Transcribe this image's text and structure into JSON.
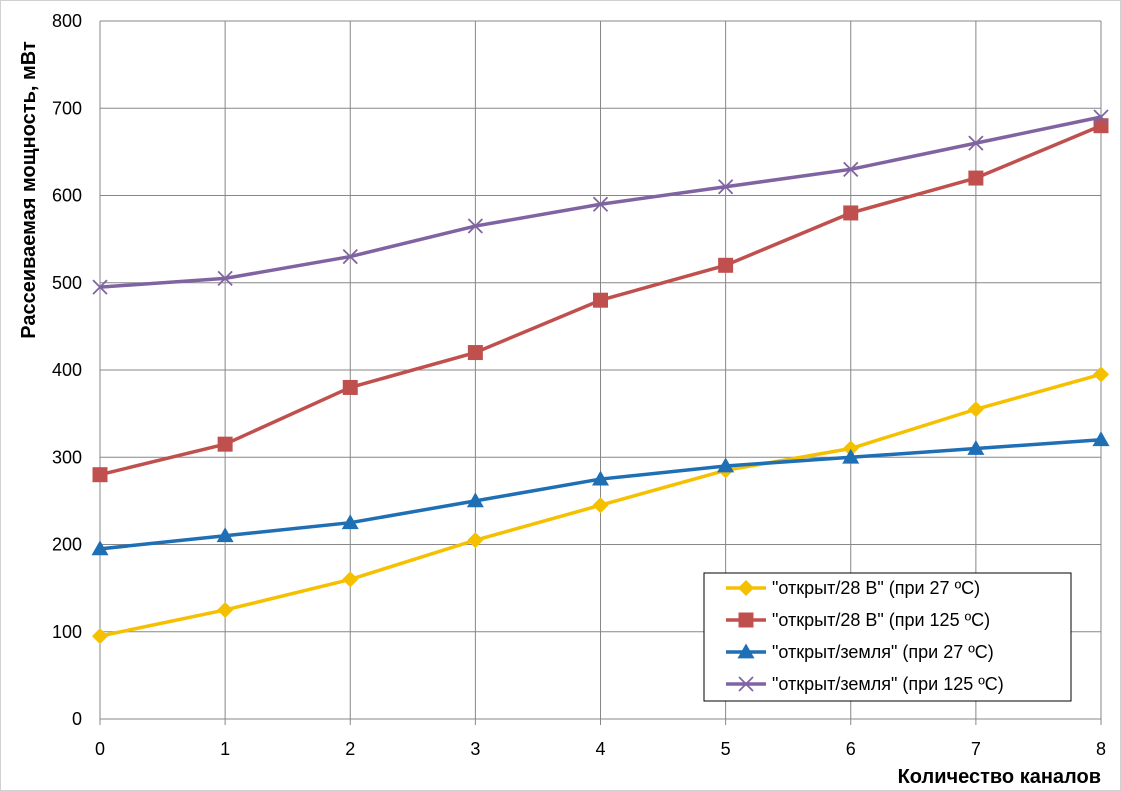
{
  "chart_data": {
    "type": "line",
    "title": "",
    "xlabel": "Количество каналов",
    "ylabel": "Рассеиваемая мощность, мВт",
    "x": [
      0,
      1,
      2,
      3,
      4,
      5,
      6,
      7,
      8
    ],
    "xlim": [
      0,
      8
    ],
    "ylim": [
      0,
      800
    ],
    "x_ticks": [
      "0",
      "1",
      "2",
      "3",
      "4",
      "5",
      "6",
      "7",
      "8"
    ],
    "y_ticks": [
      "0",
      "100",
      "200",
      "300",
      "400",
      "500",
      "600",
      "700",
      "800"
    ],
    "grid": true,
    "legend_position": "bottom-right",
    "series": [
      {
        "name": "\"открыт/28 В\" (при 27 ºС)",
        "color": "#f5c000",
        "marker": "diamond",
        "values": [
          95,
          125,
          160,
          205,
          245,
          285,
          310,
          355,
          395
        ]
      },
      {
        "name": "\"открыт/28 В\" (при 125 ºС)",
        "color": "#c0504d",
        "marker": "square",
        "values": [
          280,
          315,
          380,
          420,
          480,
          520,
          580,
          620,
          680
        ]
      },
      {
        "name": "\"открыт/земля\" (при 27 ºС)",
        "color": "#1f6fb5",
        "marker": "triangle",
        "values": [
          195,
          210,
          225,
          250,
          275,
          290,
          300,
          310,
          320
        ]
      },
      {
        "name": "\"открыт/земля\" (при 125 ºС)",
        "color": "#8064a2",
        "marker": "x",
        "values": [
          495,
          505,
          530,
          565,
          590,
          610,
          630,
          660,
          690
        ]
      }
    ]
  }
}
